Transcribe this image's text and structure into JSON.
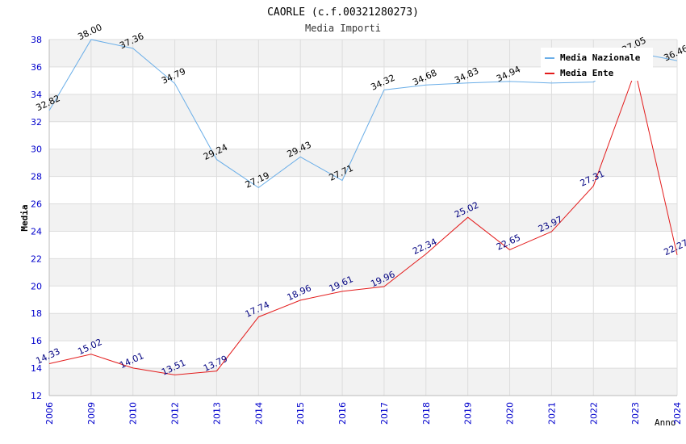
{
  "colors": {
    "nazionale": "#6aaee8",
    "ente": "#e31b1b",
    "tick_label": "#0000cc",
    "ente_label": "#000080",
    "band": "#f2f2f2",
    "grid": "#dddddd"
  },
  "chart_data": {
    "type": "line",
    "title": "CAORLE (c.f.00321280273)",
    "subtitle": "Media Importi",
    "xlabel": "Anno",
    "ylabel": "Media",
    "ylim": [
      12,
      38
    ],
    "yticks": [
      12,
      14,
      16,
      18,
      20,
      22,
      24,
      26,
      28,
      30,
      32,
      34,
      36,
      38
    ],
    "categories": [
      "2006",
      "2009",
      "2010",
      "2012",
      "2013",
      "2014",
      "2015",
      "2016",
      "2017",
      "2018",
      "2019",
      "2020",
      "2021",
      "2022",
      "2023",
      "2024"
    ],
    "legend_position": "top-right",
    "series": [
      {
        "key": "nazionale",
        "name": "Media Nazionale",
        "values": [
          32.82,
          38.0,
          37.36,
          34.79,
          29.24,
          27.19,
          29.43,
          27.71,
          34.32,
          34.68,
          34.83,
          34.94,
          34.82,
          34.9,
          37.05,
          36.46
        ],
        "labels": [
          "32.82",
          "38.00",
          "37.36",
          "34.79",
          "29.24",
          "27.19",
          "29.43",
          "27.71",
          "34.32",
          "34.68",
          "34.83",
          "34.94",
          null,
          null,
          "37.05",
          "36.46"
        ]
      },
      {
        "key": "ente",
        "name": "Media Ente",
        "values": [
          14.33,
          15.02,
          14.01,
          13.51,
          13.79,
          17.74,
          18.96,
          19.61,
          19.96,
          22.34,
          25.02,
          22.65,
          23.97,
          27.31,
          35.7,
          22.27
        ],
        "labels": [
          "14.33",
          "15.02",
          "14.01",
          "13.51",
          "13.79",
          "17.74",
          "18.96",
          "19.61",
          "19.96",
          "22.34",
          "25.02",
          "22.65",
          "23.97",
          "27.31",
          null,
          "22.27"
        ]
      }
    ]
  }
}
